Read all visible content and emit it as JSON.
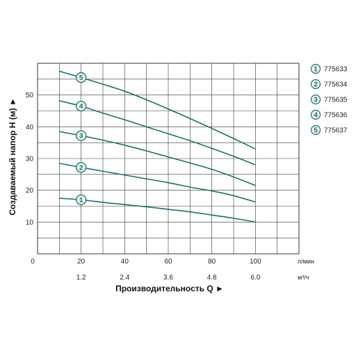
{
  "chart_data": {
    "type": "line",
    "ylabel": "Создаваемый напор H (м) ►",
    "xlabel": "Производительность Q ►",
    "x_unit_top": "л/мин",
    "x_unit_bottom": "м³/ч",
    "x_origin_label": "0",
    "xlim": [
      0,
      120
    ],
    "ylim": [
      0,
      60
    ],
    "x_ticks": [
      20,
      40,
      60,
      80,
      100
    ],
    "x_ticks_secondary": [
      "1.2",
      "2.4",
      "3.6",
      "4.8",
      "6.0"
    ],
    "y_ticks": [
      10,
      20,
      30,
      40,
      50
    ],
    "grid": true,
    "legend_position": "right",
    "colors": {
      "curve": "#1f6f6a",
      "marker_fill": "#e8f3f1",
      "grid": "#333333"
    },
    "series": [
      {
        "name": "775633",
        "marker": "1",
        "x": [
          10,
          20,
          30,
          40,
          50,
          60,
          70,
          80,
          90,
          100
        ],
        "y": [
          17.5,
          17,
          16.2,
          15.5,
          14.8,
          14,
          13.2,
          12.2,
          11.2,
          10
        ]
      },
      {
        "name": "775634",
        "marker": "2",
        "x": [
          10,
          20,
          30,
          40,
          50,
          60,
          70,
          80,
          90,
          100
        ],
        "y": [
          28.5,
          27.2,
          26,
          24.8,
          23.6,
          22.4,
          21,
          19.8,
          18.3,
          16.3
        ]
      },
      {
        "name": "775635",
        "marker": "3",
        "x": [
          10,
          20,
          30,
          40,
          50,
          60,
          70,
          80,
          90,
          100
        ],
        "y": [
          38.5,
          37.2,
          35.8,
          34.2,
          32.4,
          30.5,
          28.6,
          26.6,
          24.2,
          21.5
        ]
      },
      {
        "name": "775636",
        "marker": "4",
        "x": [
          10,
          20,
          30,
          40,
          50,
          60,
          70,
          80,
          90,
          100
        ],
        "y": [
          48.2,
          46.5,
          44.3,
          42.2,
          40,
          37.8,
          35.6,
          33.2,
          30.7,
          28
        ]
      },
      {
        "name": "775637",
        "marker": "5",
        "x": [
          10,
          20,
          30,
          40,
          50,
          60,
          70,
          80,
          90,
          100
        ],
        "y": [
          57.5,
          55.5,
          53.4,
          51.2,
          48.5,
          45.6,
          42.6,
          39.5,
          36.3,
          33
        ]
      }
    ]
  }
}
